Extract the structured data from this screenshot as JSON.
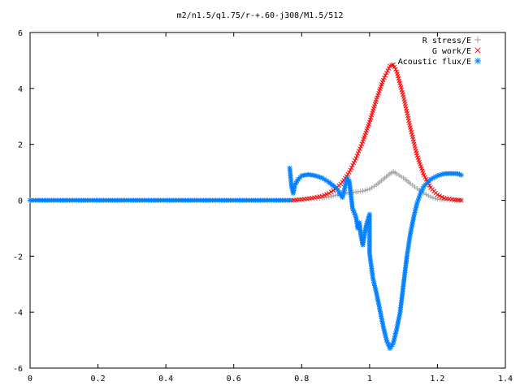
{
  "chart_data": {
    "type": "scatter",
    "title": "m2/n1.5/q1.75/r-+.60-j308/M1.5/512",
    "xlabel": "",
    "ylabel": "",
    "xlim": [
      0,
      1.4
    ],
    "ylim": [
      -6,
      6
    ],
    "x_ticks": [
      "0",
      "0.2",
      "0.4",
      "0.6",
      "0.8",
      "1",
      "1.2",
      "1.4"
    ],
    "y_ticks": [
      "6",
      "4",
      "2",
      "0",
      "-2",
      "-4",
      "-6"
    ],
    "grid": false,
    "legend_position": "top-right",
    "series": [
      {
        "name": "R stress/E",
        "color": "#a0a0a0",
        "marker": "plus",
        "points": [
          [
            0.77,
            0.0
          ],
          [
            0.8,
            0.02
          ],
          [
            0.83,
            0.05
          ],
          [
            0.86,
            0.08
          ],
          [
            0.88,
            0.12
          ],
          [
            0.9,
            0.18
          ],
          [
            0.92,
            0.23
          ],
          [
            0.94,
            0.27
          ],
          [
            0.96,
            0.3
          ],
          [
            0.98,
            0.33
          ],
          [
            1.0,
            0.4
          ],
          [
            1.02,
            0.55
          ],
          [
            1.04,
            0.75
          ],
          [
            1.06,
            0.95
          ],
          [
            1.07,
            1.02
          ],
          [
            1.08,
            0.95
          ],
          [
            1.1,
            0.8
          ],
          [
            1.12,
            0.6
          ],
          [
            1.14,
            0.42
          ],
          [
            1.16,
            0.25
          ],
          [
            1.18,
            0.12
          ],
          [
            1.2,
            0.04
          ],
          [
            1.22,
            0.01
          ],
          [
            1.25,
            0.0
          ],
          [
            1.27,
            0.0
          ]
        ]
      },
      {
        "name": "G work/E",
        "color": "#ff0000",
        "marker": "cross",
        "points": [
          [
            0.77,
            0.0
          ],
          [
            0.8,
            0.03
          ],
          [
            0.83,
            0.08
          ],
          [
            0.86,
            0.15
          ],
          [
            0.88,
            0.25
          ],
          [
            0.9,
            0.4
          ],
          [
            0.92,
            0.65
          ],
          [
            0.94,
            1.0
          ],
          [
            0.96,
            1.5
          ],
          [
            0.98,
            2.1
          ],
          [
            1.0,
            2.8
          ],
          [
            1.02,
            3.6
          ],
          [
            1.04,
            4.3
          ],
          [
            1.06,
            4.8
          ],
          [
            1.07,
            4.85
          ],
          [
            1.08,
            4.6
          ],
          [
            1.1,
            3.7
          ],
          [
            1.12,
            2.6
          ],
          [
            1.14,
            1.6
          ],
          [
            1.16,
            0.9
          ],
          [
            1.18,
            0.45
          ],
          [
            1.2,
            0.2
          ],
          [
            1.22,
            0.08
          ],
          [
            1.25,
            0.02
          ],
          [
            1.27,
            0.0
          ]
        ]
      },
      {
        "name": "Acoustic flux/E",
        "color": "#0080ff",
        "marker": "star",
        "points": [
          [
            0.765,
            1.15
          ],
          [
            0.77,
            0.5
          ],
          [
            0.775,
            0.25
          ],
          [
            0.78,
            0.55
          ],
          [
            0.79,
            0.75
          ],
          [
            0.8,
            0.88
          ],
          [
            0.82,
            0.92
          ],
          [
            0.84,
            0.88
          ],
          [
            0.86,
            0.8
          ],
          [
            0.88,
            0.65
          ],
          [
            0.9,
            0.45
          ],
          [
            0.91,
            0.3
          ],
          [
            0.92,
            0.1
          ],
          [
            0.93,
            0.6
          ],
          [
            0.935,
            0.8
          ],
          [
            0.94,
            0.7
          ],
          [
            0.945,
            0.2
          ],
          [
            0.95,
            -0.3
          ],
          [
            0.96,
            -0.6
          ],
          [
            0.965,
            -1.0
          ],
          [
            0.97,
            -0.8
          ],
          [
            0.975,
            -1.3
          ],
          [
            0.98,
            -1.6
          ],
          [
            0.99,
            -0.9
          ],
          [
            1.0,
            -0.5
          ],
          [
            1.0,
            -1.9
          ],
          [
            1.01,
            -2.8
          ],
          [
            1.02,
            -3.3
          ],
          [
            1.03,
            -3.9
          ],
          [
            1.04,
            -4.5
          ],
          [
            1.05,
            -5.0
          ],
          [
            1.06,
            -5.3
          ],
          [
            1.07,
            -5.1
          ],
          [
            1.08,
            -4.6
          ],
          [
            1.09,
            -4.0
          ],
          [
            1.1,
            -3.0
          ],
          [
            1.11,
            -2.0
          ],
          [
            1.12,
            -1.2
          ],
          [
            1.13,
            -0.6
          ],
          [
            1.14,
            -0.1
          ],
          [
            1.15,
            0.25
          ],
          [
            1.16,
            0.5
          ],
          [
            1.18,
            0.75
          ],
          [
            1.2,
            0.88
          ],
          [
            1.22,
            0.95
          ],
          [
            1.24,
            0.96
          ],
          [
            1.26,
            0.95
          ],
          [
            1.27,
            0.9
          ]
        ]
      }
    ]
  }
}
